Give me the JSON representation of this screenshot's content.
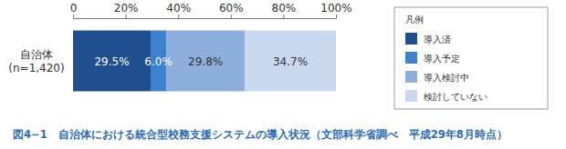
{
  "chart_data": {
    "type": "bar",
    "orientation": "horizontal",
    "stacked": true,
    "data_labels": true,
    "legend": "right",
    "legend_title": "凡例",
    "title": "図4−1　自治体における統合型校務支援システムの導入状況（文部科学省調べ　平成29年8月時点）",
    "categories": [
      "自治体\n(n=1,420)"
    ],
    "xlim": [
      0,
      100
    ],
    "xticks": [
      0,
      {
        "value": 20,
        "label": "20%"
      },
      {
        "value": 40,
        "label": "40%"
      },
      {
        "value": 60,
        "label": "60%"
      },
      {
        "value": 80,
        "label": "80%"
      },
      {
        "value": 100,
        "label": "100%"
      }
    ],
    "series": [
      {
        "name": "導入済",
        "color": "#1f4f8f",
        "values": [
          29.5
        ],
        "value_labels": [
          "29.5%"
        ]
      },
      {
        "name": "導入予定",
        "color": "#3d82cc",
        "values": [
          6.0
        ],
        "value_labels": [
          "6.0%"
        ]
      },
      {
        "name": "導入検討中",
        "color": "#8eafdc",
        "values": [
          29.8
        ],
        "value_labels": [
          "29.8%"
        ]
      },
      {
        "name": "検討していない",
        "color": "#c8d8ef",
        "values": [
          34.7
        ],
        "value_labels": [
          "34.7%"
        ]
      }
    ]
  }
}
